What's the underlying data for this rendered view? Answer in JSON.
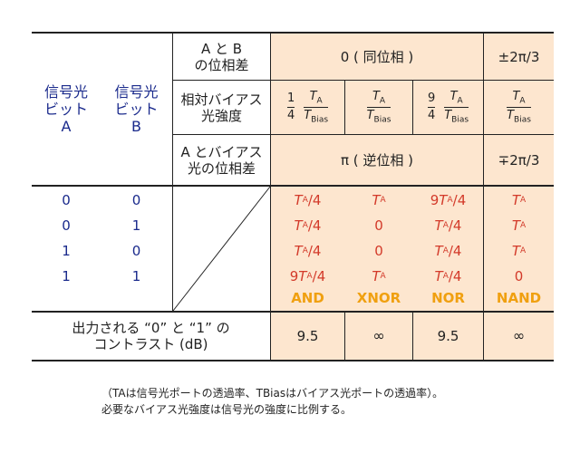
{
  "headers": {
    "signal_a": [
      "信号光",
      "ビット",
      "A"
    ],
    "signal_b": [
      "信号光",
      "ビット",
      "B"
    ],
    "phase_ab": [
      "A と B",
      "の位相差"
    ],
    "bias_intensity": [
      "相対バイアス",
      "光強度"
    ],
    "phase_bias": [
      "A とバイアス",
      "光の位相差"
    ],
    "contrast": [
      "出力される “0” と “1” の",
      "コントラスト (dB)"
    ]
  },
  "phase_values": {
    "in_phase": "0 ( 同位相 )",
    "pm_2pi3": "±2π/3",
    "anti_phase": "π ( 逆位相 )",
    "mp_2pi3": "∓2π/3"
  },
  "intensity": {
    "col1": {
      "coef_num": "1",
      "coef_den": "4",
      "num": "T",
      "num_sub": "A",
      "den": "T",
      "den_sub": "Bias"
    },
    "col2": {
      "num": "T",
      "num_sub": "A",
      "den": "T",
      "den_sub": "Bias"
    },
    "col3": {
      "coef_num": "9",
      "coef_den": "4",
      "num": "T",
      "num_sub": "A",
      "den": "T",
      "den_sub": "Bias"
    },
    "col4": {
      "num": "T",
      "num_sub": "A",
      "den": "T",
      "den_sub": "Bias"
    }
  },
  "bits": [
    {
      "a": "0",
      "b": "0"
    },
    {
      "a": "0",
      "b": "1"
    },
    {
      "a": "1",
      "b": "0"
    },
    {
      "a": "1",
      "b": "1"
    }
  ],
  "outputs": [
    [
      "TA/4",
      "TA",
      "9TA/4",
      "TA"
    ],
    [
      "TA/4",
      "0",
      "TA/4",
      "TA"
    ],
    [
      "TA/4",
      "0",
      "TA/4",
      "TA"
    ],
    [
      "9TA/4",
      "TA",
      "TA/4",
      "0"
    ]
  ],
  "gates": [
    "AND",
    "XNOR",
    "NOR",
    "NAND"
  ],
  "contrast_values": [
    "9.5",
    "∞",
    "9.5",
    "∞"
  ],
  "notes": [
    "（TAは信号光ポートの透過率、TBiasはバイアス光ポートの透過率）。",
    "必要なバイアス光強度は信号光の強度に比例する。"
  ],
  "colors": {
    "blue": "#1a2a8c",
    "red": "#d33a2a",
    "orange": "#f0a010",
    "peach": "#fde6cf"
  }
}
